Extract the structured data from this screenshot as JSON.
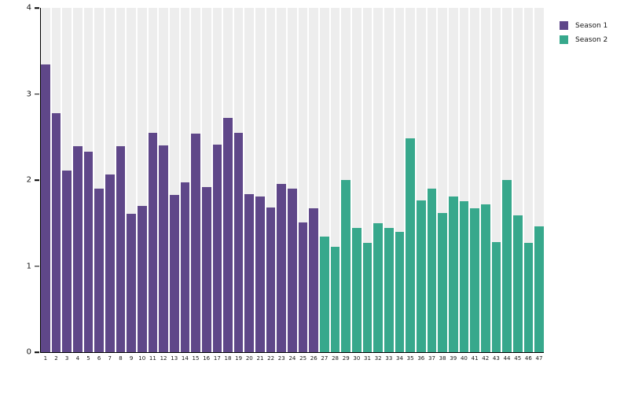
{
  "chart_data": {
    "type": "bar",
    "title": "",
    "xlabel": "",
    "ylabel": "",
    "ylim": [
      0,
      4
    ],
    "yticks": [
      "0",
      "1",
      "2",
      "3",
      "4"
    ],
    "grid": false,
    "legend_position": "top-right",
    "track_color": "#ededed",
    "axis_color": "#000000",
    "text_color": "#141414",
    "categories": [
      "1",
      "2",
      "3",
      "4",
      "5",
      "6",
      "7",
      "8",
      "9",
      "10",
      "11",
      "12",
      "13",
      "14",
      "15",
      "16",
      "17",
      "18",
      "19",
      "20",
      "21",
      "22",
      "23",
      "24",
      "25",
      "26",
      "27",
      "28",
      "29",
      "30",
      "31",
      "32",
      "33",
      "34",
      "35",
      "36",
      "37",
      "38",
      "39",
      "40",
      "41",
      "42",
      "43",
      "44",
      "45",
      "46",
      "47"
    ],
    "series": [
      {
        "name": "Season 1",
        "color": "#5f4789",
        "categories": [
          "1",
          "2",
          "3",
          "4",
          "5",
          "6",
          "7",
          "8",
          "9",
          "10",
          "11",
          "12",
          "13",
          "14",
          "15",
          "16",
          "17",
          "18",
          "19",
          "20",
          "21",
          "22",
          "23",
          "24",
          "25",
          "26"
        ],
        "values": [
          3.34,
          2.78,
          2.11,
          2.39,
          2.33,
          1.9,
          2.06,
          2.39,
          1.61,
          1.7,
          2.55,
          2.4,
          1.83,
          1.97,
          2.54,
          1.92,
          2.41,
          2.72,
          2.55,
          1.84,
          1.81,
          1.68,
          1.95,
          1.9,
          1.51,
          1.67
        ]
      },
      {
        "name": "Season 2",
        "color": "#37a88c",
        "categories": [
          "27",
          "28",
          "29",
          "30",
          "31",
          "32",
          "33",
          "34",
          "35",
          "36",
          "37",
          "38",
          "39",
          "40",
          "41",
          "42",
          "43",
          "44",
          "45",
          "46",
          "47"
        ],
        "values": [
          1.34,
          1.22,
          2.0,
          1.44,
          1.27,
          1.5,
          1.44,
          1.4,
          2.48,
          1.76,
          1.9,
          1.62,
          1.81,
          1.75,
          1.67,
          1.72,
          1.28,
          2.0,
          1.59,
          1.27,
          1.46
        ]
      }
    ]
  }
}
